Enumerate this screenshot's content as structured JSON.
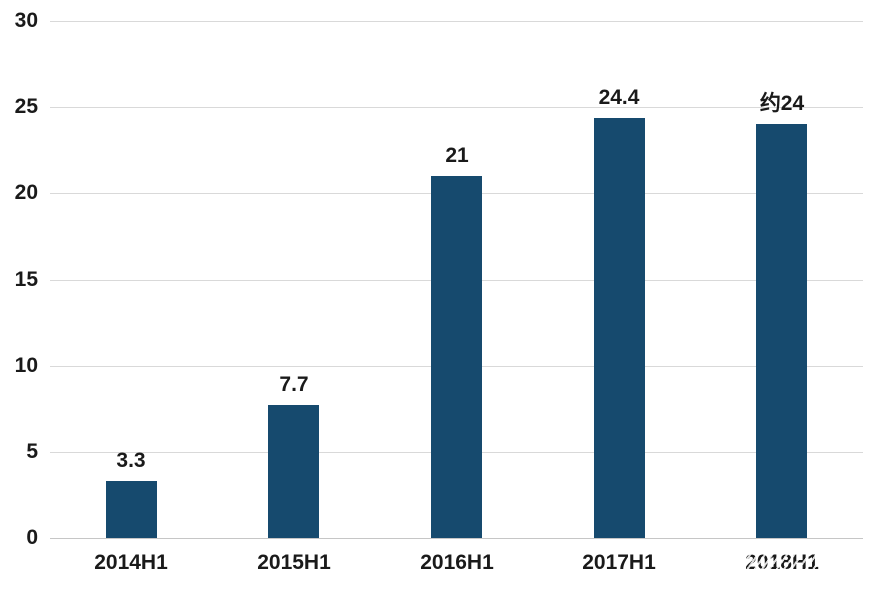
{
  "chart_data": {
    "type": "bar",
    "title": "",
    "categories": [
      "2014H1",
      "2015H1",
      "2016H1",
      "2017H1",
      "2018H1"
    ],
    "values": [
      3.3,
      7.7,
      21,
      24.4,
      24
    ],
    "value_labels": [
      "3.3",
      "7.7",
      "21",
      "24.4",
      "约24"
    ],
    "xlabel": "",
    "ylabel": "",
    "ylim": [
      0,
      30
    ],
    "yticks": [
      0,
      5,
      10,
      15,
      20,
      25,
      30
    ],
    "grid": "horizontal",
    "legend": "none",
    "bar_color": "#164A6E",
    "gridline_color": "#D9D9D9",
    "baseline_color": "#C6C6C6",
    "label_color": "#1A1A1A"
  }
}
